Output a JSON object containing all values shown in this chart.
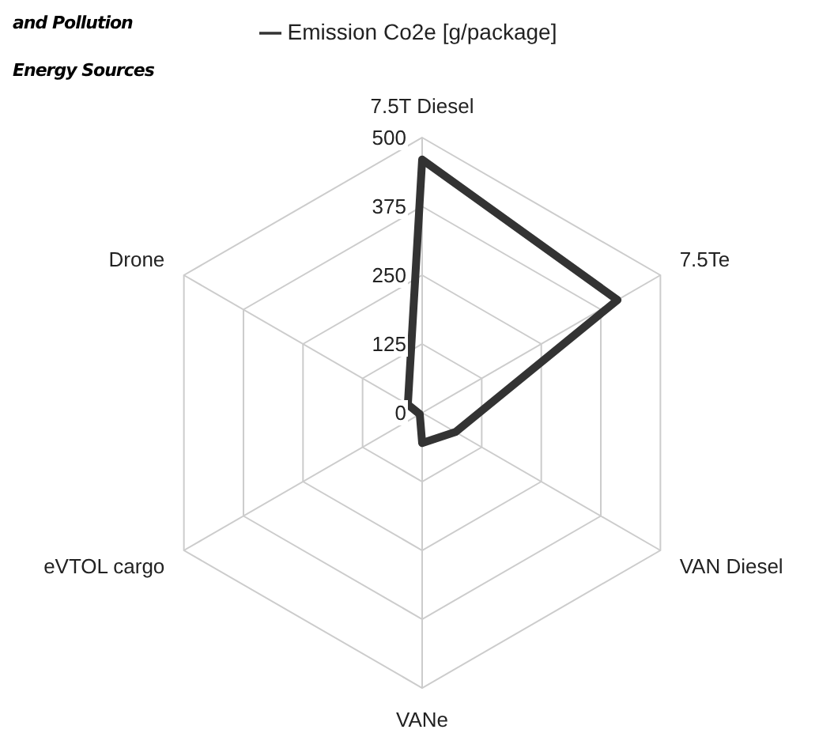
{
  "chart_data": {
    "type": "radar",
    "title": "and Pollution",
    "subtitle": "Energy Sources",
    "categories": [
      "7.5T Diesel",
      "7.5Te",
      "VAN Diesel",
      "VANe",
      "eVTOL cargo",
      "Drone"
    ],
    "series": [
      {
        "name": "Emission Co2e [g/package]",
        "color": "#333333",
        "values": [
          460,
          410,
          70,
          55,
          5,
          30
        ]
      }
    ],
    "ylim": [
      0,
      500
    ],
    "yticks": [
      0,
      125,
      250,
      375,
      500
    ],
    "grid": true,
    "legend": "top",
    "marker": "none"
  }
}
